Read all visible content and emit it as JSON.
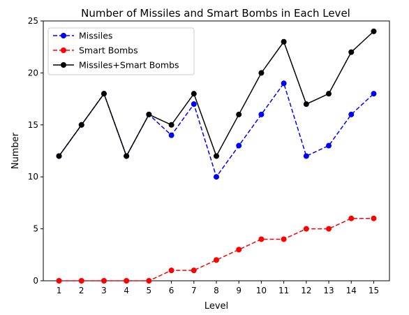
{
  "chart_data": {
    "type": "line",
    "title": "Number of Missiles and Smart Bombs in Each Level",
    "xlabel": "Level",
    "ylabel": "Number",
    "x": [
      1,
      2,
      3,
      4,
      5,
      6,
      7,
      8,
      9,
      10,
      11,
      12,
      13,
      14,
      15
    ],
    "xticks": [
      "1",
      "2",
      "3",
      "4",
      "5",
      "6",
      "7",
      "8",
      "9",
      "10",
      "11",
      "12",
      "13",
      "14",
      "15"
    ],
    "yticks": [
      "0",
      "5",
      "10",
      "15",
      "20",
      "25"
    ],
    "ylim": [
      0,
      25
    ],
    "grid": false,
    "legend_position": "upper-left",
    "series": [
      {
        "name": "Missiles",
        "color": "#0000ff",
        "linestyle": "dashed",
        "marker": "circle",
        "values": [
          12,
          15,
          18,
          12,
          16,
          14,
          17,
          10,
          13,
          16,
          19,
          12,
          13,
          16,
          18
        ]
      },
      {
        "name": "Smart Bombs",
        "color": "#ff0000",
        "linestyle": "dashed",
        "marker": "circle",
        "values": [
          0,
          0,
          0,
          0,
          0,
          1,
          1,
          2,
          3,
          4,
          4,
          5,
          5,
          6,
          6
        ]
      },
      {
        "name": "Missiles+Smart Bombs",
        "color": "#000000",
        "linestyle": "solid",
        "marker": "circle",
        "values": [
          12,
          15,
          18,
          12,
          16,
          15,
          18,
          12,
          16,
          20,
          23,
          17,
          18,
          22,
          24
        ]
      }
    ]
  }
}
